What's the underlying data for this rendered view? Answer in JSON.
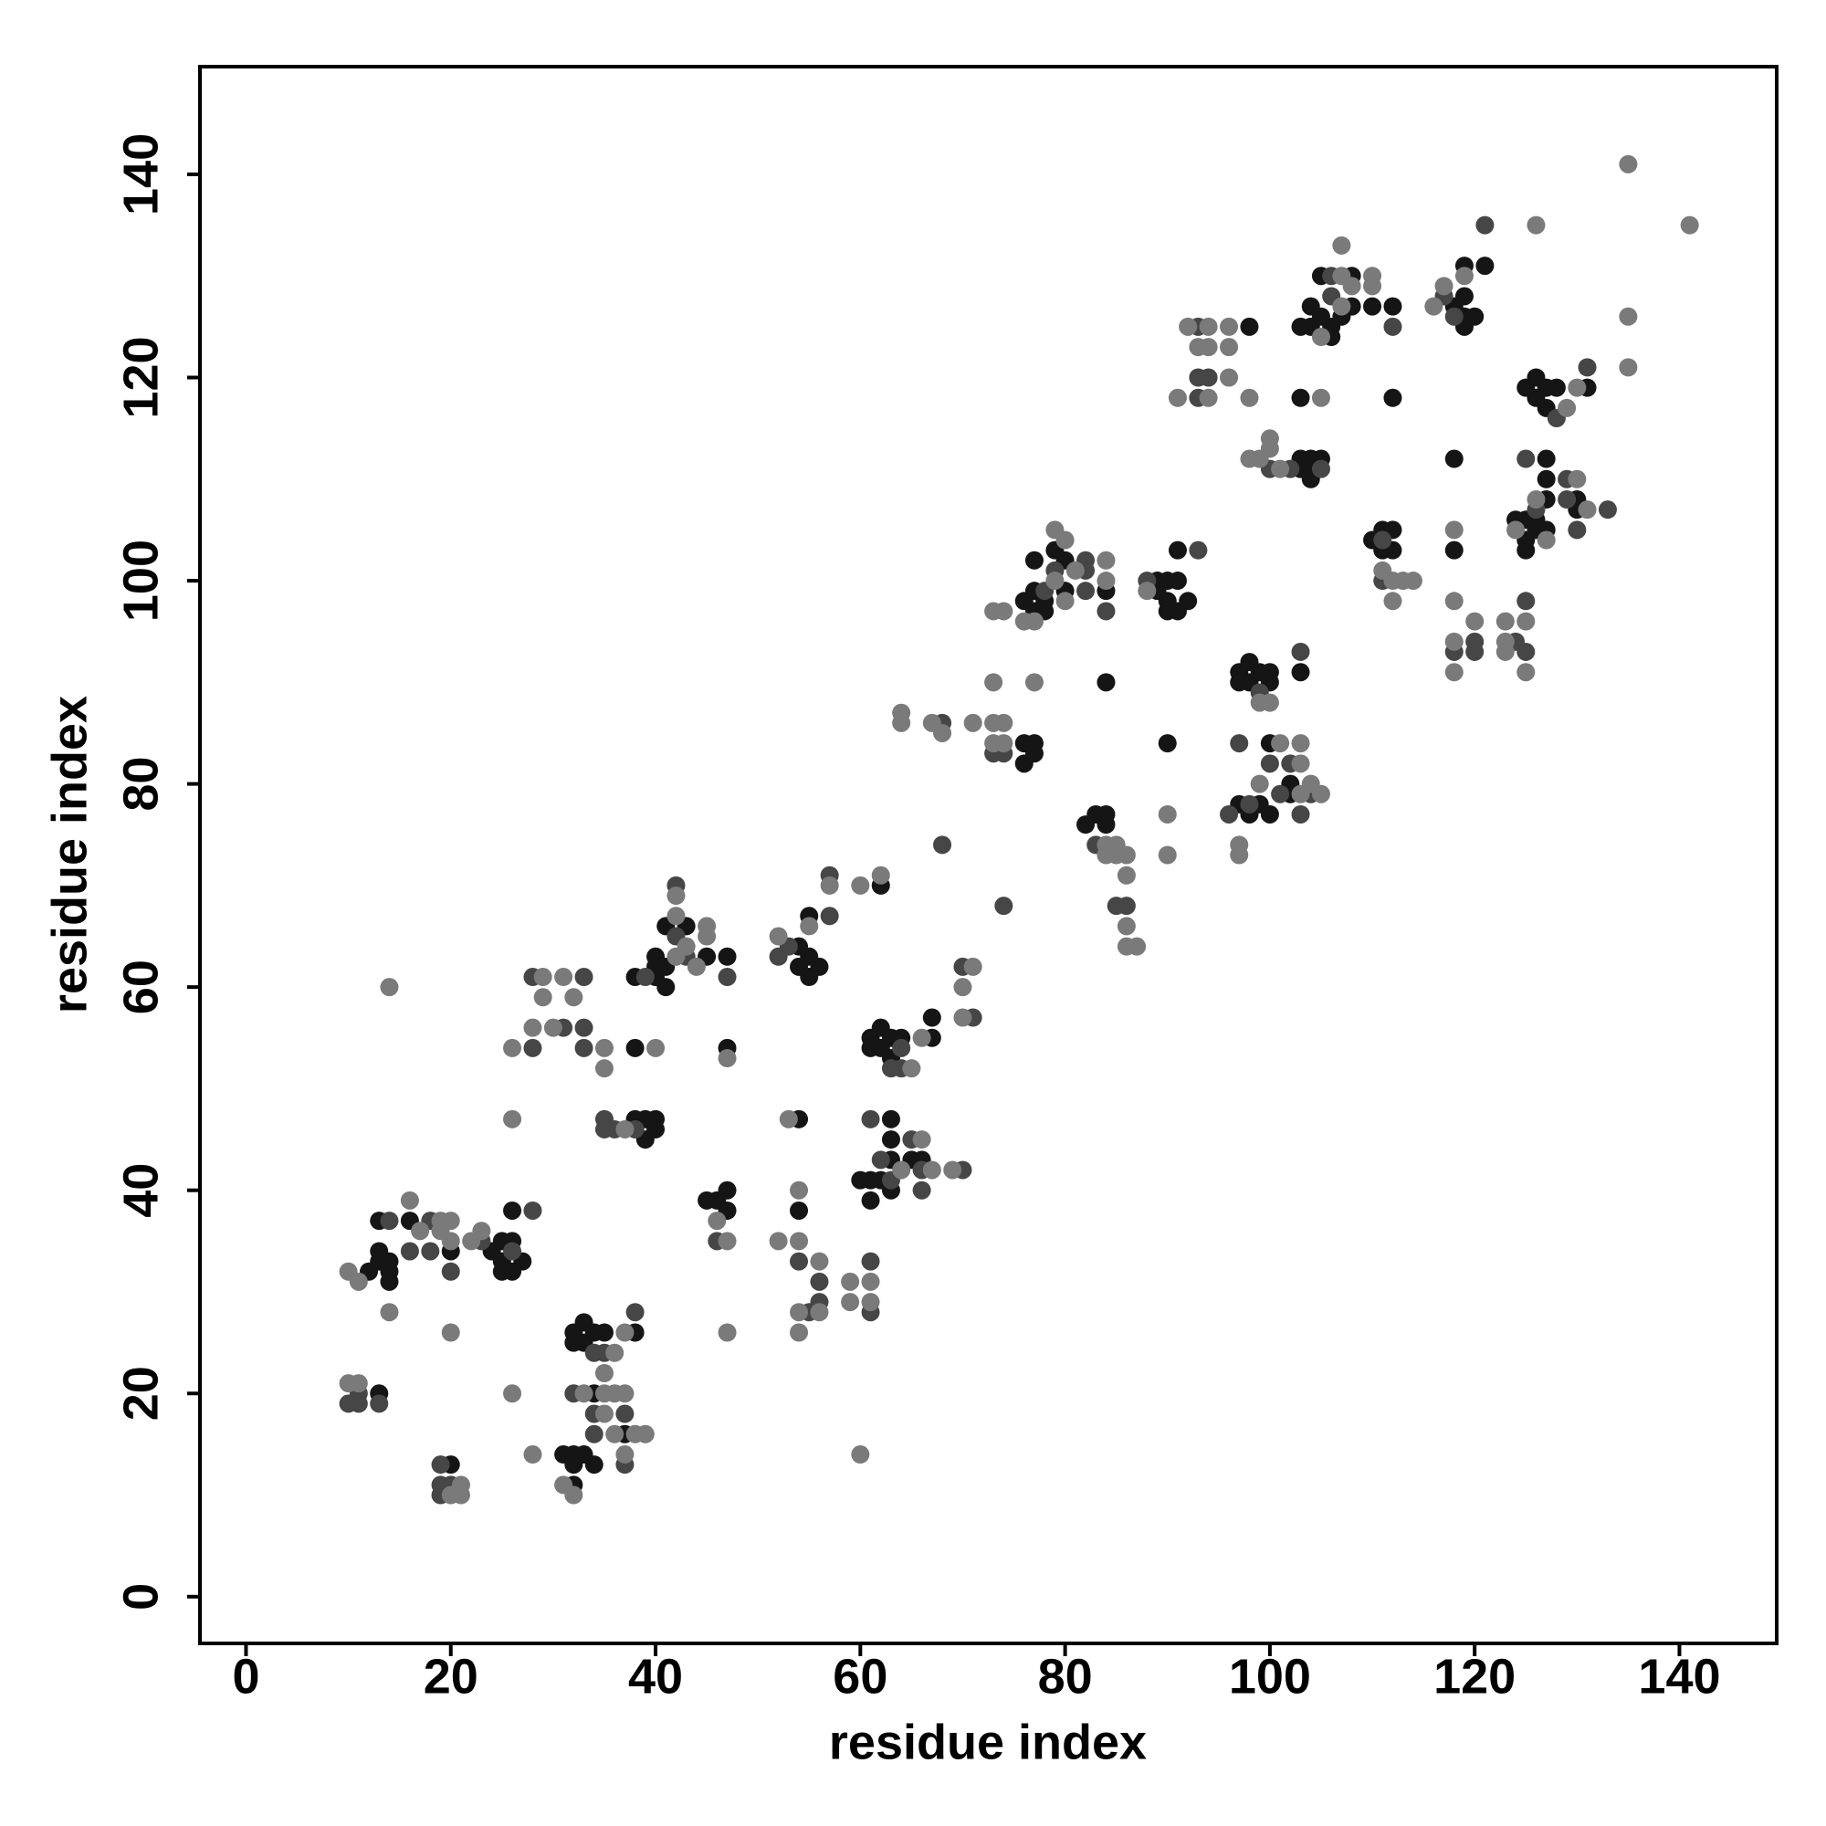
{
  "chart_data": {
    "type": "scatter",
    "xlabel": "residue index",
    "ylabel": "residue index",
    "xlim": [
      -4.5,
      149.5
    ],
    "ylim": [
      -4.6,
      150.6
    ],
    "xticks": [
      0,
      20,
      40,
      60,
      80,
      100,
      120,
      140
    ],
    "yticks": [
      0,
      20,
      40,
      60,
      80,
      100,
      120,
      140
    ],
    "grid": false,
    "series": [
      {
        "color": "#151515",
        "x": [
          12,
          13,
          13,
          13,
          14,
          14,
          14,
          13,
          16,
          20,
          24,
          25,
          25,
          25,
          26,
          26,
          26,
          27,
          20,
          31,
          32,
          32,
          33,
          34,
          32,
          34,
          32,
          32,
          33,
          33,
          34,
          35,
          37,
          38,
          38,
          39,
          39,
          40,
          40,
          38,
          38,
          40,
          40,
          40,
          41,
          41,
          41,
          43,
          45,
          47,
          45,
          46,
          47,
          47,
          47,
          54,
          54,
          55,
          55,
          55,
          56,
          54,
          54,
          62,
          60,
          61,
          61,
          62,
          63,
          63,
          63,
          63,
          65,
          66,
          61,
          61,
          62,
          62,
          63,
          63,
          64,
          67,
          67,
          76,
          76,
          77,
          77,
          76,
          77,
          77,
          77,
          78,
          78,
          79,
          80,
          80,
          84,
          84,
          82,
          83,
          84,
          84,
          90,
          89,
          89,
          90,
          90,
          90,
          91,
          91,
          91,
          92,
          97,
          97,
          98,
          98,
          99,
          100,
          100,
          97,
          98,
          99,
          100,
          100,
          102,
          102,
          98,
          103,
          103,
          104,
          104,
          104,
          105,
          103,
          103,
          103,
          104,
          104,
          105,
          105,
          106,
          106,
          107,
          108,
          108,
          110,
          112,
          112,
          110,
          111,
          111,
          112,
          112,
          118,
          119,
          119,
          119,
          120,
          119,
          121,
          118,
          118,
          124,
          125,
          125,
          125,
          126,
          126,
          127,
          127,
          127,
          127,
          125,
          126,
          126,
          127,
          127,
          128,
          131,
          130,
          130
        ],
        "values": [
          32,
          37,
          34,
          33,
          32,
          31,
          33,
          20,
          37,
          34,
          34,
          35,
          33,
          32,
          38,
          35,
          32,
          33,
          13,
          14,
          13,
          14,
          14,
          13,
          11,
          20,
          26,
          25,
          27,
          25,
          26,
          26,
          16,
          26,
          47,
          47,
          45,
          47,
          46,
          54,
          61,
          63,
          62,
          61,
          66,
          62,
          60,
          66,
          63,
          63,
          39,
          39,
          40,
          38,
          54,
          64,
          62,
          63,
          61,
          67,
          62,
          47,
          38,
          70,
          41,
          41,
          39,
          41,
          47,
          45,
          43,
          40,
          43,
          43,
          55,
          54,
          56,
          54,
          55,
          53,
          55,
          57,
          55,
          84,
          82,
          84,
          83,
          98,
          99,
          97,
          102,
          97,
          98,
          103,
          102,
          99,
          99,
          90,
          76,
          77,
          77,
          76,
          84,
          100,
          99,
          100,
          98,
          97,
          103,
          100,
          97,
          98,
          91,
          90,
          92,
          90,
          91,
          91,
          90,
          78,
          77,
          78,
          84,
          77,
          80,
          79,
          125,
          112,
          111,
          112,
          111,
          110,
          112,
          118,
          91,
          125,
          125,
          127,
          126,
          130,
          125,
          124,
          126,
          130,
          127,
          127,
          127,
          118,
          104,
          105,
          103,
          105,
          103,
          127,
          128,
          126,
          125,
          126,
          131,
          131,
          112,
          103,
          106,
          106,
          104,
          103,
          106,
          105,
          112,
          110,
          108,
          105,
          119,
          120,
          118,
          119,
          117,
          119,
          119,
          107,
          108
        ]
      },
      {
        "color": "#464646",
        "x": [
          14,
          10,
          11,
          11,
          13,
          16,
          18,
          18,
          20,
          23,
          26,
          28,
          19,
          19,
          20,
          19,
          28,
          28,
          31,
          33,
          33,
          33,
          32,
          34,
          35,
          34,
          34,
          37,
          37,
          38,
          35,
          35,
          36,
          38,
          39,
          42,
          42,
          43,
          47,
          46,
          52,
          53,
          57,
          57,
          54,
          55,
          56,
          56,
          61,
          61,
          61,
          62,
          63,
          65,
          66,
          66,
          70,
          63,
          64,
          64,
          70,
          71,
          68,
          68,
          73,
          74,
          74,
          78,
          79,
          82,
          82,
          82,
          84,
          83,
          85,
          86,
          88,
          93,
          99,
          97,
          96,
          98,
          100,
          101,
          102,
          103,
          104,
          93,
          93,
          93,
          94,
          100,
          102,
          105,
          103,
          106,
          106,
          112,
          111,
          111,
          117,
          118,
          121,
          118,
          120,
          120,
          124,
          125,
          125,
          125,
          126,
          128,
          131,
          129,
          129,
          130,
          133
        ],
        "values": [
          37,
          19,
          19,
          20,
          19,
          34,
          37,
          34,
          32,
          35,
          34,
          38,
          13,
          11,
          11,
          10,
          54,
          61,
          56,
          61,
          56,
          54,
          20,
          24,
          24,
          16,
          18,
          18,
          13,
          28,
          47,
          46,
          46,
          46,
          61,
          70,
          65,
          63,
          61,
          35,
          63,
          64,
          71,
          67,
          33,
          28,
          31,
          29,
          33,
          28,
          47,
          43,
          41,
          45,
          42,
          40,
          42,
          52,
          54,
          52,
          62,
          57,
          86,
          74,
          83,
          83,
          68,
          99,
          101,
          102,
          101,
          99,
          97,
          74,
          68,
          68,
          100,
          103,
          89,
          84,
          77,
          78,
          82,
          79,
          82,
          77,
          79,
          125,
          120,
          118,
          120,
          111,
          111,
          111,
          93,
          128,
          130,
          125,
          104,
          100,
          128,
          126,
          135,
          93,
          94,
          93,
          94,
          112,
          98,
          93,
          107,
          116,
          121,
          110,
          108,
          105,
          107
        ]
      },
      {
        "color": "#7a7a7a",
        "x": [
          10,
          11,
          14,
          14,
          10,
          11,
          16,
          17,
          19,
          19,
          20,
          20,
          20,
          22,
          23,
          26,
          26,
          26,
          21,
          20,
          21,
          28,
          28,
          29,
          29,
          30,
          31,
          32,
          31,
          32,
          33,
          35,
          36,
          37,
          35,
          36,
          35,
          36,
          37,
          38,
          39,
          37,
          35,
          35,
          37,
          40,
          42,
          42,
          42,
          43,
          44,
          45,
          45,
          46,
          47,
          47,
          47,
          52,
          57,
          55,
          52,
          53,
          54,
          54,
          54,
          54,
          56,
          56,
          59,
          59,
          60,
          61,
          61,
          60,
          62,
          64,
          66,
          67,
          69,
          65,
          66,
          70,
          70,
          71,
          64,
          64,
          67,
          68,
          71,
          73,
          73,
          73,
          74,
          74,
          77,
          73,
          74,
          76,
          77,
          79,
          79,
          80,
          80,
          81,
          84,
          84,
          84,
          84,
          85,
          85,
          86,
          86,
          86,
          86,
          87,
          90,
          90,
          88,
          100,
          99,
          97,
          97,
          99,
          101,
          103,
          103,
          103,
          104,
          105,
          92,
          93,
          94,
          94,
          94,
          91,
          96,
          96,
          96,
          98,
          98,
          99,
          100,
          100,
          101,
          105,
          105,
          107,
          107,
          107,
          108,
          110,
          110,
          111,
          112,
          112,
          113,
          114,
          116,
          119,
          117,
          118,
          118,
          118,
          118,
          120,
          123,
          123,
          123,
          124,
          125,
          125,
          126,
          127,
          129,
          130,
          130,
          131,
          135,
          135,
          135,
          141,
          126
        ],
        "values": [
          32,
          31,
          28,
          60,
          21,
          21,
          39,
          36,
          37,
          36,
          37,
          35,
          26,
          35,
          36,
          20,
          47,
          54,
          11,
          10,
          10,
          14,
          56,
          61,
          59,
          56,
          61,
          59,
          11,
          10,
          20,
          20,
          20,
          20,
          22,
          24,
          18,
          16,
          14,
          16,
          16,
          26,
          54,
          52,
          46,
          54,
          69,
          67,
          63,
          64,
          62,
          66,
          65,
          37,
          35,
          26,
          53,
          65,
          70,
          66,
          35,
          47,
          40,
          35,
          28,
          26,
          33,
          28,
          31,
          29,
          70,
          31,
          29,
          14,
          71,
          42,
          45,
          42,
          42,
          52,
          55,
          60,
          57,
          62,
          87,
          86,
          86,
          85,
          86,
          90,
          86,
          84,
          86,
          84,
          90,
          97,
          97,
          96,
          96,
          105,
          100,
          104,
          98,
          101,
          102,
          100,
          74,
          73,
          73,
          74,
          73,
          71,
          66,
          64,
          64,
          77,
          73,
          99,
          88,
          88,
          74,
          73,
          80,
          84,
          84,
          82,
          79,
          80,
          79,
          125,
          123,
          125,
          123,
          118,
          118,
          125,
          123,
          120,
          118,
          112,
          112,
          114,
          113,
          111,
          118,
          124,
          133,
          130,
          127,
          129,
          130,
          129,
          101,
          100,
          98,
          100,
          100,
          127,
          130,
          129,
          105,
          98,
          94,
          91,
          96,
          96,
          94,
          93,
          105,
          96,
          91,
          108,
          104,
          117,
          119,
          110,
          107,
          126,
          121,
          141,
          135,
          135
        ]
      }
    ]
  }
}
